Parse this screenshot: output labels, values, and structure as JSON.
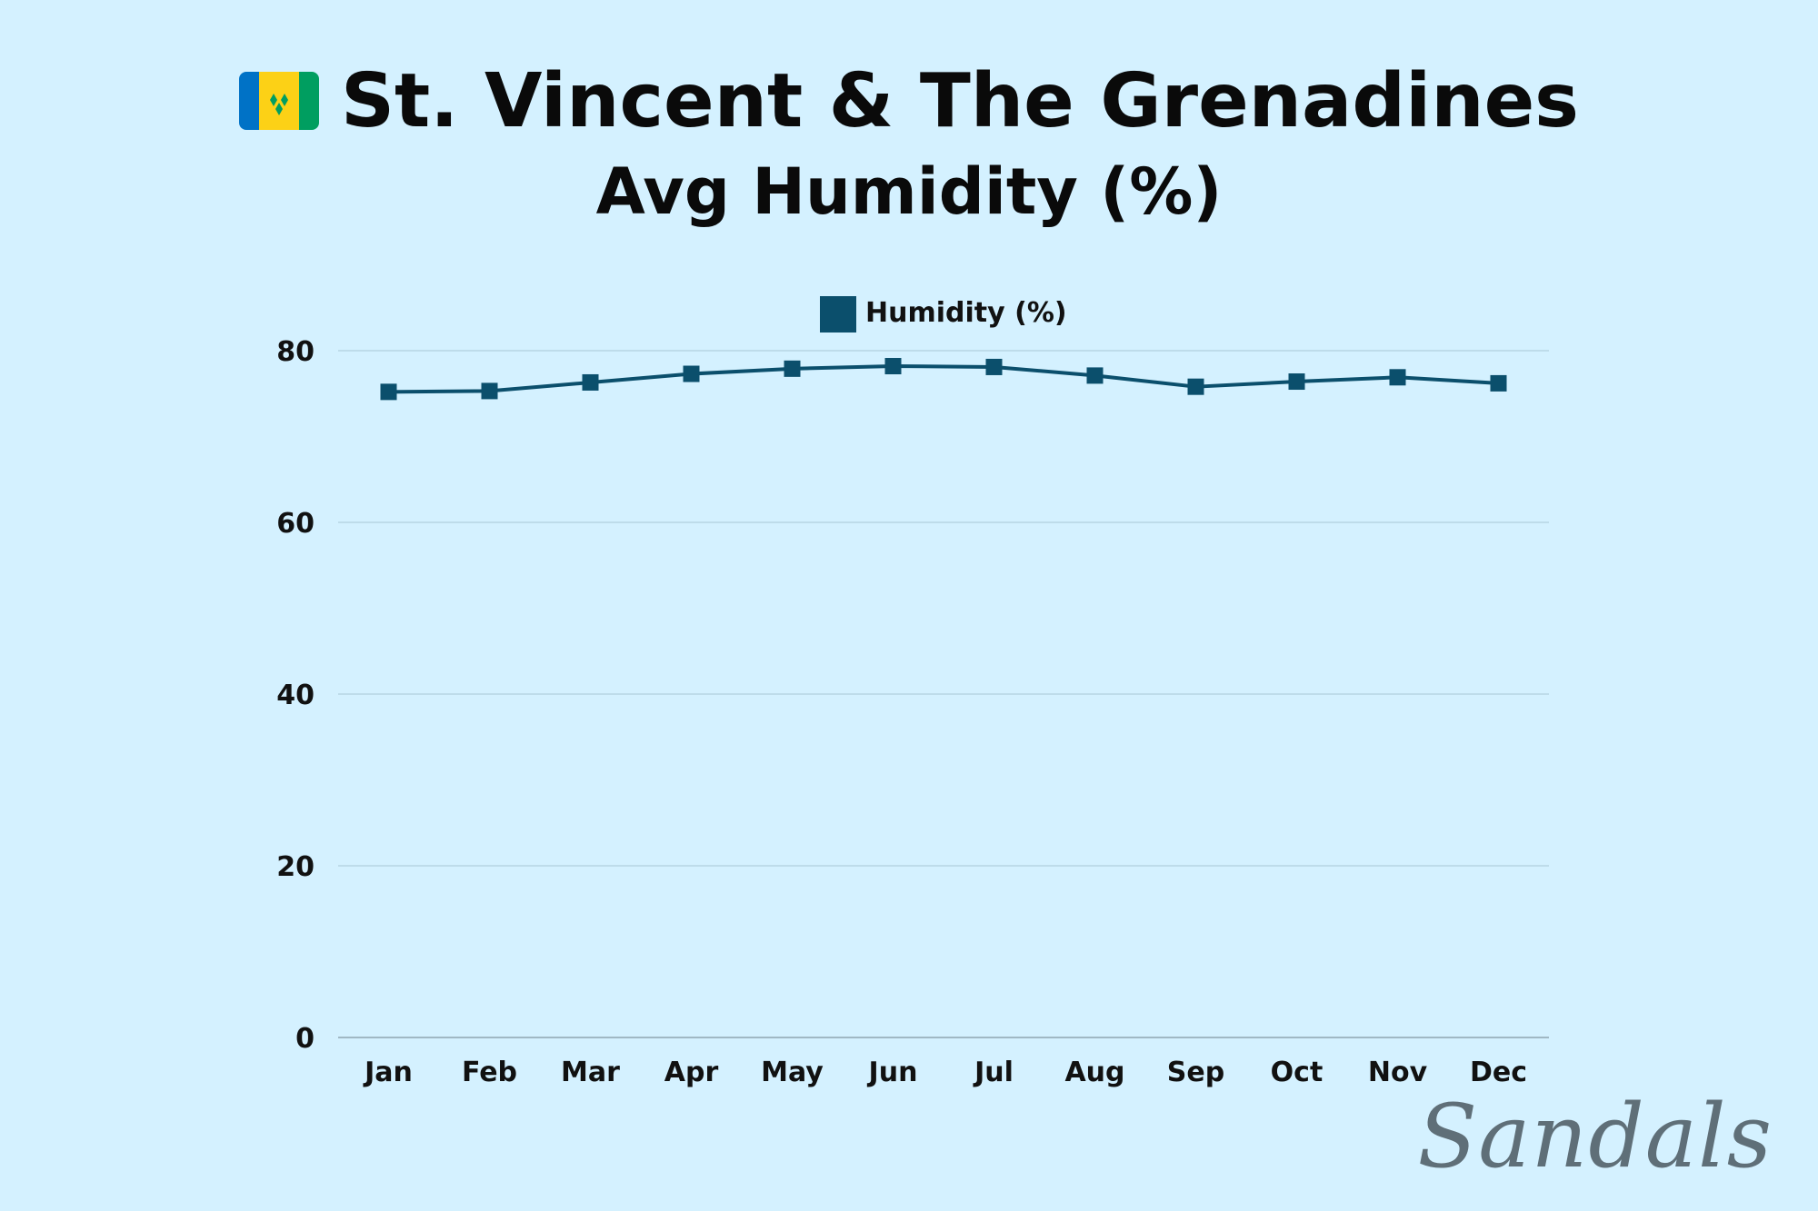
{
  "header": {
    "title": "St. Vincent & The Grenadines",
    "subtitle": "Avg Humidity (%)",
    "flag_icon": "st-vincent-flag-icon",
    "flag_colors": [
      "#0072c6",
      "#fcd116",
      "#009e60"
    ]
  },
  "brand": {
    "logo_text": "Sandals"
  },
  "colors": {
    "background": "#d4f1ff",
    "series": "#0b4f6c",
    "grid": "#a9c7d4"
  },
  "chart_data": {
    "type": "line",
    "title": "",
    "xlabel": "",
    "ylabel": "",
    "categories": [
      "Jan",
      "Feb",
      "Mar",
      "Apr",
      "May",
      "Jun",
      "Jul",
      "Aug",
      "Sep",
      "Oct",
      "Nov",
      "Dec"
    ],
    "series": [
      {
        "name": "Humidity (%)",
        "values": [
          75.2,
          75.3,
          76.3,
          77.3,
          77.9,
          78.2,
          78.1,
          77.1,
          75.8,
          76.4,
          76.9,
          76.2
        ]
      }
    ],
    "ylim": [
      0,
      80
    ],
    "yticks": [
      0,
      20,
      40,
      60,
      80
    ],
    "grid": true,
    "legend_position": "top-center",
    "marker": "square"
  }
}
